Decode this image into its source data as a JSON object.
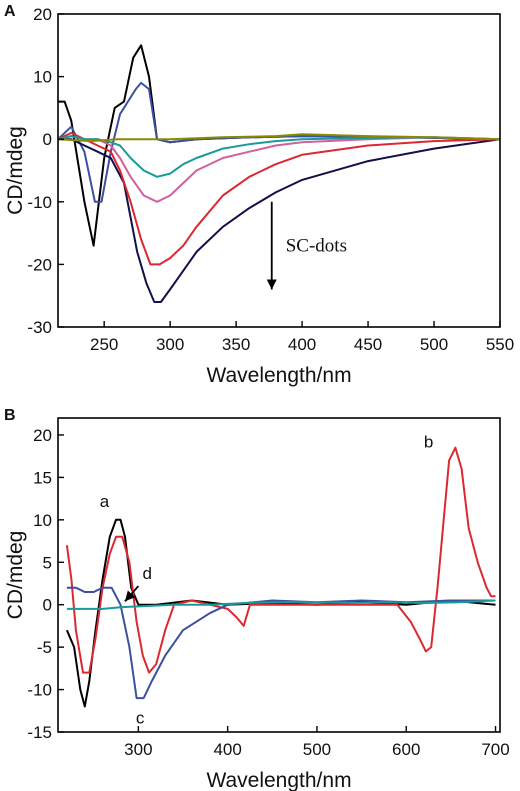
{
  "chart_data": [
    {
      "panel": "A",
      "type": "line",
      "xlabel": "Wavelength/nm",
      "ylabel": "CD/mdeg",
      "xlim": [
        215,
        550
      ],
      "ylim": [
        -30,
        20
      ],
      "xticks": [
        250,
        300,
        350,
        400,
        450,
        500,
        550
      ],
      "yticks": [
        -30,
        -20,
        -10,
        0,
        10,
        20
      ],
      "grid": false,
      "legend": "none",
      "annotation": {
        "text": "SC-dots",
        "arrow_from": [
          377,
          -10
        ],
        "arrow_to": [
          377,
          -24
        ]
      },
      "series": [
        {
          "color": "#000000",
          "x": [
            215,
            220,
            225,
            235,
            242,
            250,
            258,
            265,
            272,
            278,
            284,
            290,
            300,
            320,
            360,
            400,
            450,
            500,
            550
          ],
          "y": [
            6,
            6,
            3,
            -10,
            -17,
            -3,
            5,
            6,
            13,
            15,
            10,
            0,
            -0.5,
            0,
            0.3,
            0.5,
            0.4,
            0.2,
            0
          ]
        },
        {
          "color": "#3c50a0",
          "x": [
            215,
            225,
            235,
            243,
            248,
            255,
            262,
            268,
            274,
            278,
            284,
            290,
            300,
            320,
            360,
            400,
            450,
            500,
            550
          ],
          "y": [
            0,
            2,
            -2,
            -10,
            -10,
            -2,
            4,
            6,
            8,
            9,
            8,
            0,
            -0.5,
            0,
            0.3,
            0.5,
            0.4,
            0.2,
            0
          ]
        },
        {
          "color": "#10104a",
          "x": [
            215,
            225,
            235,
            245,
            255,
            265,
            275,
            282,
            288,
            293,
            300,
            310,
            320,
            340,
            360,
            380,
            400,
            450,
            500,
            550
          ],
          "y": [
            0,
            0,
            -1,
            -2,
            -3,
            -7,
            -18,
            -23,
            -26,
            -26,
            -24,
            -21,
            -18,
            -14,
            -11,
            -8.5,
            -6.5,
            -3.5,
            -1.5,
            0
          ]
        },
        {
          "color": "#dc2830",
          "x": [
            215,
            225,
            235,
            245,
            255,
            262,
            270,
            278,
            285,
            292,
            300,
            310,
            320,
            340,
            360,
            380,
            400,
            450,
            500,
            550
          ],
          "y": [
            0,
            1,
            0,
            -1,
            -2,
            -5,
            -10,
            -16,
            -20,
            -20,
            -19,
            -17,
            -14,
            -9,
            -6,
            -4,
            -2.5,
            -1,
            -0.3,
            0
          ]
        },
        {
          "color": "#d060a0",
          "x": [
            215,
            225,
            235,
            245,
            255,
            262,
            270,
            280,
            290,
            300,
            310,
            320,
            340,
            360,
            380,
            400,
            450,
            500,
            550
          ],
          "y": [
            0,
            0.5,
            0,
            0,
            -1,
            -3,
            -6,
            -9,
            -10,
            -9,
            -7,
            -5,
            -3,
            -2,
            -1,
            -0.5,
            0,
            0.3,
            0
          ]
        },
        {
          "color": "#1a9a9a",
          "x": [
            215,
            225,
            235,
            245,
            255,
            262,
            270,
            280,
            290,
            300,
            310,
            320,
            340,
            360,
            380,
            400,
            450,
            500,
            550
          ],
          "y": [
            0,
            0.5,
            0,
            0,
            -0.5,
            -1,
            -3,
            -5,
            -6,
            -5.5,
            -4,
            -3,
            -1.5,
            -0.8,
            -0.3,
            0,
            0.2,
            0.3,
            0
          ]
        },
        {
          "color": "#8a8a00",
          "x": [
            215,
            240,
            260,
            280,
            300,
            340,
            380,
            400,
            450,
            500,
            550
          ],
          "y": [
            0,
            -0.3,
            0,
            0,
            0,
            0.3,
            0.5,
            0.8,
            0.5,
            0.3,
            0
          ]
        }
      ]
    },
    {
      "panel": "B",
      "type": "line",
      "xlabel": "Wavelength/nm",
      "ylabel": "CD/mdeg",
      "xlim": [
        210,
        705
      ],
      "ylim": [
        -15,
        22
      ],
      "xticks": [
        300,
        400,
        500,
        600,
        700
      ],
      "yticks": [
        -15,
        -10,
        -5,
        0,
        5,
        10,
        15,
        20
      ],
      "grid": false,
      "legend": "none",
      "curve_labels": [
        {
          "text": "a",
          "x": 262,
          "y": 11.5
        },
        {
          "text": "b",
          "x": 625,
          "y": 18.5
        },
        {
          "text": "c",
          "x": 302,
          "y": -14
        },
        {
          "text": "d",
          "x": 310,
          "y": 3
        }
      ],
      "annotation": {
        "text": "",
        "arrow_from": [
          300,
          2.2
        ],
        "arrow_to": [
          285,
          0.4
        ]
      },
      "series": [
        {
          "name": "a",
          "color": "#000000",
          "x": [
            220,
            228,
            235,
            240,
            245,
            252,
            260,
            268,
            275,
            280,
            285,
            292,
            300,
            320,
            360,
            400,
            450,
            500,
            550,
            600,
            650,
            700
          ],
          "y": [
            -3,
            -5,
            -10,
            -12,
            -9,
            -3,
            3,
            8,
            10,
            10,
            8,
            2,
            0,
            0,
            0.5,
            0,
            0.2,
            0,
            0.3,
            0,
            0.5,
            0
          ]
        },
        {
          "name": "b",
          "color": "#dc2830",
          "x": [
            220,
            225,
            230,
            238,
            245,
            252,
            260,
            268,
            275,
            282,
            290,
            298,
            305,
            312,
            320,
            330,
            340,
            360,
            380,
            400,
            410,
            418,
            425,
            440,
            480,
            520,
            560,
            590,
            605,
            615,
            622,
            628,
            635,
            642,
            648,
            655,
            662,
            670,
            680,
            690,
            695,
            700
          ],
          "y": [
            7,
            3,
            -3,
            -8,
            -8,
            -4,
            2,
            6,
            8,
            8,
            5,
            -2,
            -6,
            -8,
            -7,
            -3,
            0,
            0.5,
            0,
            -0.5,
            -1.5,
            -2.5,
            0,
            0,
            0,
            0,
            0,
            0,
            -2,
            -4,
            -5.5,
            -5,
            2,
            10,
            17,
            18.5,
            16,
            9,
            5,
            2,
            1,
            1
          ]
        },
        {
          "name": "c",
          "color": "#3c50a0",
          "x": [
            220,
            230,
            240,
            250,
            260,
            270,
            280,
            290,
            298,
            306,
            315,
            330,
            350,
            380,
            400,
            450,
            500,
            550,
            600,
            650,
            700
          ],
          "y": [
            2,
            2,
            1.5,
            1.5,
            2,
            2,
            0,
            -5,
            -11,
            -11,
            -9,
            -6,
            -3,
            -1,
            0,
            0.5,
            0.3,
            0.5,
            0.3,
            0.5,
            0.5
          ]
        },
        {
          "name": "d",
          "color": "#1a9a9a",
          "x": [
            220,
            240,
            260,
            280,
            300,
            340,
            380,
            420,
            460,
            500,
            540,
            580,
            620,
            660,
            700
          ],
          "y": [
            -0.5,
            -0.5,
            -0.5,
            -0.3,
            -0.2,
            0,
            0,
            0.2,
            0.3,
            0.3,
            0.2,
            0.3,
            0.2,
            0.3,
            0.5
          ]
        }
      ]
    }
  ]
}
